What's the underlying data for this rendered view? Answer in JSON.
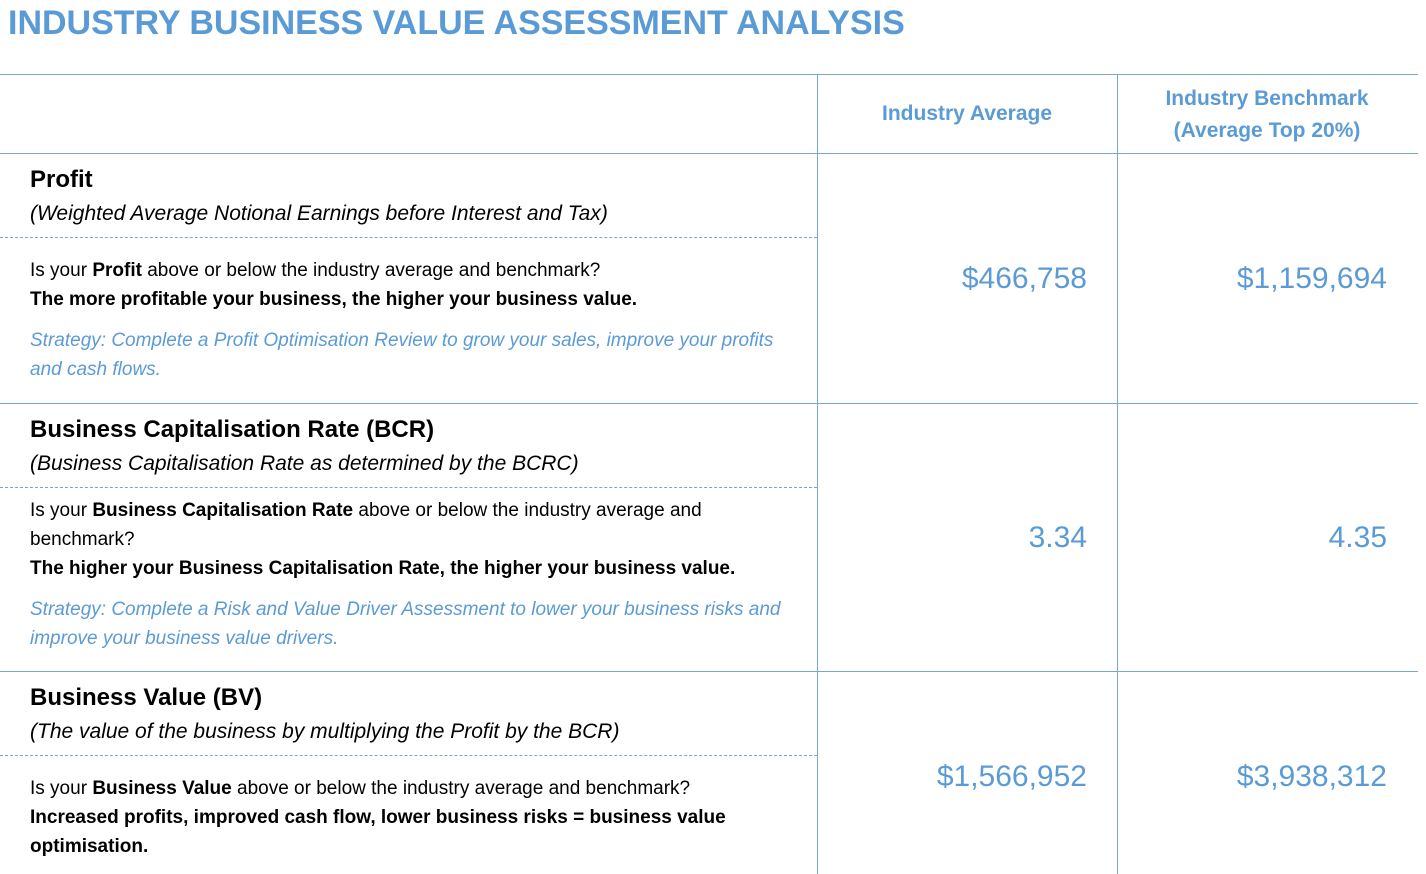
{
  "header": {
    "title": "INDUSTRY BUSINESS VALUE ASSESSMENT ANALYSIS"
  },
  "table": {
    "columns": [
      [
        "Industry Average"
      ],
      [
        "Industry Benchmark",
        "(Average Top 20%)"
      ]
    ],
    "rows": [
      {
        "label": "Profit",
        "subtitle": "(Weighted Average Notional Earnings before Interest and Tax)",
        "question_before": "Is your ",
        "question_bold": "Profit",
        "question_after": " above or below the industry average and benchmark?",
        "statement": "The more profitable your business, the higher your business value.",
        "strategy": "Strategy: Complete a Profit Optimisation Review to grow your sales, improve your profits and cash flows.",
        "values": [
          "$466,758",
          "$1,159,694"
        ]
      },
      {
        "label": "Business Capitalisation Rate (BCR)",
        "subtitle": "(Business Capitalisation Rate as determined by the BCRC)",
        "question_before": "Is your ",
        "question_bold": "Business Capitalisation Rate",
        "question_after": " above or below the industry average and benchmark?",
        "statement": "The higher your Business Capitalisation Rate, the higher your business value.",
        "strategy": "Strategy: Complete a Risk and Value Driver Assessment to lower your business risks and improve your business value drivers.",
        "values": [
          "3.34",
          "4.35"
        ]
      },
      {
        "label": "Business Value (BV)",
        "subtitle": "(The value of the business by multiplying the Profit by the BCR)",
        "question_before": "Is your ",
        "question_bold": "Business Value",
        "question_after": " above or below the industry average and benchmark?",
        "statement": "Increased profits, improved cash flow, lower business risks = business value optimisation.",
        "values": [
          "$1,566,952",
          "$3,938,312"
        ]
      }
    ]
  }
}
